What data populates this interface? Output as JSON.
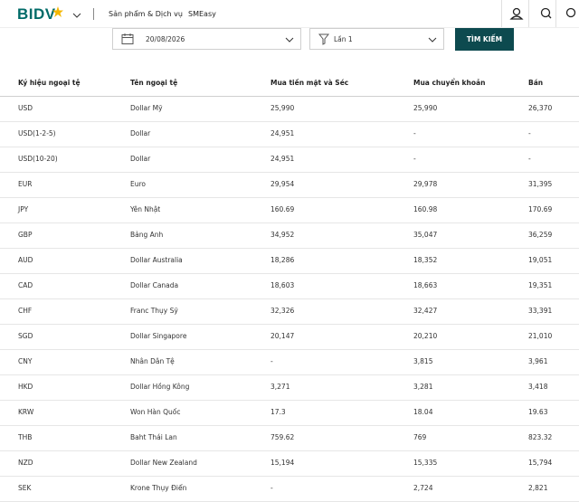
{
  "header": {
    "logo": "BIDV",
    "nav": [
      "Sản phẩm & Dịch vụ",
      "SMEasy"
    ]
  },
  "filters": {
    "date": "20/08/2026",
    "session": "Lần 1",
    "button": "TÌM KIẾM"
  },
  "table": {
    "columns": [
      "Ký hiệu ngoại tệ",
      "Tên ngoại tệ",
      "Mua tiền mặt và Séc",
      "Mua chuyển khoản",
      "Bán"
    ],
    "rows": [
      [
        "USD",
        "Dollar Mỹ",
        "25,990",
        "25,990",
        "26,370"
      ],
      [
        "USD(1-2-5)",
        "Dollar",
        "24,951",
        "-",
        "-"
      ],
      [
        "USD(10-20)",
        "Dollar",
        "24,951",
        "-",
        "-"
      ],
      [
        "EUR",
        "Euro",
        "29,954",
        "29,978",
        "31,395"
      ],
      [
        "JPY",
        "Yên Nhật",
        "160.69",
        "160.98",
        "170.69"
      ],
      [
        "GBP",
        "Bảng Anh",
        "34,952",
        "35,047",
        "36,259"
      ],
      [
        "AUD",
        "Dollar Australia",
        "18,286",
        "18,352",
        "19,051"
      ],
      [
        "CAD",
        "Dollar Canada",
        "18,603",
        "18,663",
        "19,351"
      ],
      [
        "CHF",
        "Franc Thụy Sỹ",
        "32,326",
        "32,427",
        "33,391"
      ],
      [
        "SGD",
        "Dollar Singapore",
        "20,147",
        "20,210",
        "21,010"
      ],
      [
        "CNY",
        "Nhân Dân Tệ",
        "-",
        "3,815",
        "3,961"
      ],
      [
        "HKD",
        "Dollar Hồng Kông",
        "3,271",
        "3,281",
        "3,418"
      ],
      [
        "KRW",
        "Won Hàn Quốc",
        "17.3",
        "18.04",
        "19.63"
      ],
      [
        "THB",
        "Baht Thái Lan",
        "759.62",
        "769",
        "823.32"
      ],
      [
        "NZD",
        "Dollar New Zealand",
        "15,194",
        "15,335",
        "15,794"
      ],
      [
        "SEK",
        "Krone Thụy Điển",
        "-",
        "2,724",
        "2,821"
      ]
    ]
  }
}
